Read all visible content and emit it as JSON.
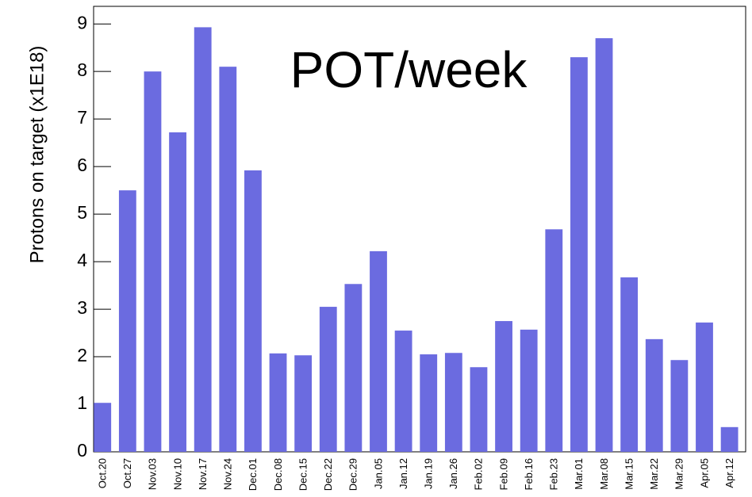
{
  "chart_data": {
    "type": "bar",
    "title": "POT/week",
    "ylabel": "Protons on target (x1E18)",
    "categories": [
      "Oct.20",
      "Oct.27",
      "Nov.03",
      "Nov.10",
      "Nov.17",
      "Nov.24",
      "Dec.01",
      "Dec.08",
      "Dec.15",
      "Dec.22",
      "Dec.29",
      "Jan.05",
      "Jan.12",
      "Jan.19",
      "Jan.26",
      "Feb.02",
      "Feb.09",
      "Feb.16",
      "Feb.23",
      "Mar.01",
      "Mar.08",
      "Mar.15",
      "Mar.22",
      "Mar.29",
      "Apr.05",
      "Apr.12"
    ],
    "values": [
      1.03,
      5.5,
      8.0,
      6.72,
      8.93,
      8.1,
      5.92,
      2.07,
      2.03,
      3.05,
      3.53,
      4.22,
      2.55,
      2.05,
      2.08,
      1.78,
      2.75,
      2.57,
      4.68,
      8.3,
      8.7,
      3.67,
      2.37,
      1.93,
      2.72,
      0.52
    ],
    "color": "#6b6be0",
    "ylim": [
      0,
      9.37
    ],
    "yticks": [
      0,
      1,
      2,
      3,
      4,
      5,
      6,
      7,
      8,
      9
    ]
  }
}
